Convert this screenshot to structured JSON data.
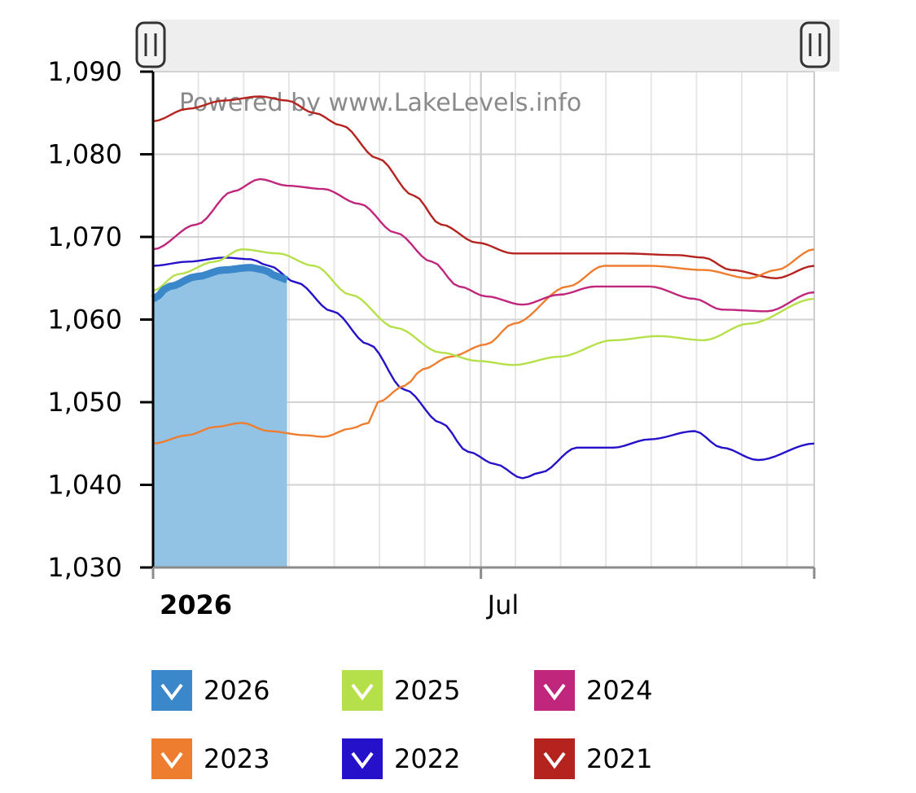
{
  "chart_data": {
    "type": "line",
    "watermark": "Powered by www.LakeLevels.info",
    "ylim": [
      1030,
      1090
    ],
    "yticks": [
      1030,
      1040,
      1050,
      1060,
      1070,
      1080,
      1090
    ],
    "ytick_labels": [
      "1,030",
      "1,040",
      "1,050",
      "1,060",
      "1,070",
      "1,080",
      "1,090"
    ],
    "xlim": [
      1,
      366
    ],
    "xticks": [
      {
        "day": 1,
        "label": "2026",
        "bold": true
      },
      {
        "day": 182,
        "label": "Jul",
        "bold": false
      }
    ],
    "grid": true,
    "legend_position": "bottom",
    "series": [
      {
        "name": "2026",
        "color": "#3a87c9",
        "fill": true,
        "points": [
          [
            1,
            1062.5
          ],
          [
            10,
            1064
          ],
          [
            25,
            1065.2
          ],
          [
            40,
            1066
          ],
          [
            55,
            1066.3
          ],
          [
            62,
            1066
          ],
          [
            70,
            1065.2
          ],
          [
            75,
            1064.8
          ]
        ]
      },
      {
        "name": "2025",
        "color": "#b6e04a",
        "points": [
          [
            1,
            1063.5
          ],
          [
            15,
            1065.5
          ],
          [
            35,
            1067
          ],
          [
            50,
            1068.5
          ],
          [
            70,
            1068
          ],
          [
            90,
            1066.5
          ],
          [
            110,
            1063
          ],
          [
            135,
            1059
          ],
          [
            160,
            1056
          ],
          [
            180,
            1055
          ],
          [
            200,
            1054.5
          ],
          [
            225,
            1055.5
          ],
          [
            255,
            1057.5
          ],
          [
            280,
            1058
          ],
          [
            305,
            1057.5
          ],
          [
            330,
            1059.5
          ],
          [
            366,
            1062.5
          ]
        ]
      },
      {
        "name": "2024",
        "color": "#c0267c",
        "points": [
          [
            1,
            1068.5
          ],
          [
            25,
            1071.5
          ],
          [
            45,
            1075.5
          ],
          [
            60,
            1077
          ],
          [
            75,
            1076.2
          ],
          [
            95,
            1075.8
          ],
          [
            115,
            1074
          ],
          [
            135,
            1070.5
          ],
          [
            155,
            1067
          ],
          [
            170,
            1064
          ],
          [
            185,
            1062.8
          ],
          [
            205,
            1061.8
          ],
          [
            225,
            1063
          ],
          [
            245,
            1064
          ],
          [
            275,
            1064
          ],
          [
            300,
            1062.5
          ],
          [
            315,
            1061.2
          ],
          [
            340,
            1061
          ],
          [
            366,
            1063.3
          ]
        ]
      },
      {
        "name": "2023",
        "color": "#ef7d2f",
        "points": [
          [
            1,
            1045
          ],
          [
            20,
            1046
          ],
          [
            35,
            1047
          ],
          [
            50,
            1047.5
          ],
          [
            65,
            1046.5
          ],
          [
            85,
            1046
          ],
          [
            95,
            1045.8
          ],
          [
            110,
            1046.8
          ],
          [
            120,
            1047.5
          ],
          [
            125,
            1050
          ],
          [
            140,
            1052
          ],
          [
            150,
            1054
          ],
          [
            165,
            1055.5
          ],
          [
            185,
            1057
          ],
          [
            200,
            1059.5
          ],
          [
            230,
            1064
          ],
          [
            250,
            1066.5
          ],
          [
            275,
            1066.5
          ],
          [
            305,
            1066
          ],
          [
            330,
            1065
          ],
          [
            345,
            1066
          ],
          [
            366,
            1068.5
          ]
        ]
      },
      {
        "name": "2022",
        "color": "#2511c9",
        "points": [
          [
            1,
            1066.5
          ],
          [
            20,
            1067
          ],
          [
            40,
            1067.5
          ],
          [
            55,
            1067.3
          ],
          [
            65,
            1066.5
          ],
          [
            80,
            1064.5
          ],
          [
            100,
            1061
          ],
          [
            120,
            1057
          ],
          [
            140,
            1051.5
          ],
          [
            160,
            1047.5
          ],
          [
            175,
            1044
          ],
          [
            190,
            1042.5
          ],
          [
            205,
            1040.8
          ],
          [
            215,
            1041.5
          ],
          [
            235,
            1044.5
          ],
          [
            255,
            1044.5
          ],
          [
            275,
            1045.5
          ],
          [
            300,
            1046.5
          ],
          [
            315,
            1044.5
          ],
          [
            335,
            1043
          ],
          [
            366,
            1045
          ]
        ]
      },
      {
        "name": "2021",
        "color": "#b5231e",
        "points": [
          [
            1,
            1084
          ],
          [
            20,
            1085.5
          ],
          [
            40,
            1086.5
          ],
          [
            60,
            1087
          ],
          [
            75,
            1086.5
          ],
          [
            90,
            1085
          ],
          [
            105,
            1083.5
          ],
          [
            125,
            1079.5
          ],
          [
            145,
            1075
          ],
          [
            160,
            1071.5
          ],
          [
            180,
            1069.3
          ],
          [
            200,
            1068
          ],
          [
            230,
            1068
          ],
          [
            260,
            1068
          ],
          [
            290,
            1067.8
          ],
          [
            305,
            1067.5
          ],
          [
            320,
            1066
          ],
          [
            345,
            1065
          ],
          [
            366,
            1066.5
          ]
        ]
      }
    ]
  },
  "legend": [
    {
      "label": "2026",
      "color": "#3a87c9"
    },
    {
      "label": "2025",
      "color": "#b6e04a"
    },
    {
      "label": "2024",
      "color": "#c0267c"
    },
    {
      "label": "2023",
      "color": "#ef7d2f"
    },
    {
      "label": "2022",
      "color": "#2511c9"
    },
    {
      "label": "2021",
      "color": "#b5231e"
    }
  ]
}
